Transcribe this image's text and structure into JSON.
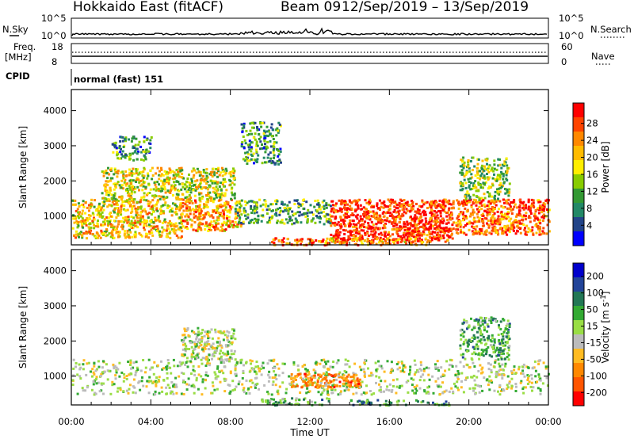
{
  "header": {
    "site": "Hokkaido East (fitACF)",
    "beam": "Beam 09",
    "dates": "12/Sep/2019 – 13/Sep/2019"
  },
  "status_panels": {
    "nsky": {
      "label": "N.Sky",
      "tick_top": "10^5",
      "tick_bottom": "10^0"
    },
    "nsearch": {
      "label": "N.Search",
      "tick_top": "10^5",
      "tick_bottom": "10^0"
    },
    "freq": {
      "label_line1": "Freq.",
      "label_line2": "[MHz]",
      "tick_top": "18",
      "tick_bottom": "8"
    },
    "nave": {
      "label": "Nave",
      "tick_top": "60",
      "tick_bottom": "0"
    },
    "cpid": {
      "label": "CPID",
      "mode": "normal (fast) 151"
    }
  },
  "chart_data": [
    {
      "type": "heatmap",
      "quantity": "Power",
      "ylabel": "Slant Range [km]",
      "xlabel": "",
      "x_range": [
        0,
        24
      ],
      "ylim": [
        180,
        4600
      ],
      "yticks": [
        1000,
        2000,
        3000,
        4000
      ],
      "colorbar": {
        "label": "Power [dB]",
        "ticks": [
          "28",
          "24",
          "20",
          "16",
          "12",
          "8",
          "4"
        ],
        "colors": [
          "#ff0000",
          "#ff4400",
          "#ff8800",
          "#ffbb00",
          "#ffee00",
          "#88cc00",
          "#339933",
          "#228866",
          "#224488",
          "#0000ff"
        ]
      },
      "regions": [
        {
          "t0": 13.0,
          "t1": 19.2,
          "r0": 300,
          "r1": 1500,
          "level": 0.9
        },
        {
          "t0": 19.3,
          "t1": 24.0,
          "r0": 500,
          "r1": 1500,
          "level": 0.8
        },
        {
          "t0": 0.0,
          "t1": 5.5,
          "r0": 400,
          "r1": 1500,
          "level": 0.6
        },
        {
          "t0": 5.5,
          "t1": 8.5,
          "r0": 600,
          "r1": 1500,
          "level": 0.7
        },
        {
          "t0": 1.5,
          "t1": 8.2,
          "r0": 1500,
          "r1": 2400,
          "level": 0.55
        },
        {
          "t0": 8.2,
          "t1": 13.0,
          "r0": 800,
          "r1": 1500,
          "level": 0.35
        },
        {
          "t0": 10.0,
          "t1": 13.0,
          "r0": 200,
          "r1": 400,
          "level": 0.8
        },
        {
          "t0": 13.0,
          "t1": 18.0,
          "r0": 200,
          "r1": 400,
          "level": 0.7
        },
        {
          "t0": 8.5,
          "t1": 10.5,
          "r0": 2500,
          "r1": 3700,
          "level": 0.3
        },
        {
          "t0": 2.0,
          "t1": 4.0,
          "r0": 2600,
          "r1": 3300,
          "level": 0.3
        },
        {
          "t0": 19.5,
          "t1": 22.0,
          "r0": 1500,
          "r1": 2700,
          "level": 0.45
        }
      ]
    },
    {
      "type": "heatmap",
      "quantity": "Velocity",
      "ylabel": "Slant Range [km]",
      "xlabel": "Time UT",
      "x_range": [
        0,
        24
      ],
      "xticks": [
        "00:00",
        "04:00",
        "08:00",
        "12:00",
        "16:00",
        "20:00",
        "00:00"
      ],
      "ylim": [
        180,
        4600
      ],
      "yticks": [
        1000,
        2000,
        3000,
        4000
      ],
      "colorbar": {
        "label": "Velocity [m s^-1]",
        "ticks": [
          "200",
          "100",
          "50",
          "15",
          "-15",
          "-50",
          "-100",
          "-200"
        ],
        "colors": [
          "#0000cc",
          "#224499",
          "#227755",
          "#33aa33",
          "#99dd44",
          "#bbbbbb",
          "#ffbb22",
          "#ff8800",
          "#ff5500",
          "#ff0000"
        ]
      },
      "regions": [
        {
          "t0": 0.0,
          "t1": 24.0,
          "r0": 500,
          "r1": 1500,
          "level": 0.5
        },
        {
          "t0": 5.5,
          "t1": 8.2,
          "r0": 1500,
          "r1": 2400,
          "level": 0.5
        },
        {
          "t0": 11.0,
          "t1": 14.5,
          "r0": 700,
          "r1": 1100,
          "level": 0.75
        },
        {
          "t0": 9.5,
          "t1": 13.0,
          "r0": 200,
          "r1": 400,
          "level": 0.35
        },
        {
          "t0": 14.0,
          "t1": 19.0,
          "r0": 200,
          "r1": 350,
          "level": 0.3
        },
        {
          "t0": 19.5,
          "t1": 22.0,
          "r0": 1500,
          "r1": 2700,
          "level": 0.35
        }
      ]
    }
  ]
}
